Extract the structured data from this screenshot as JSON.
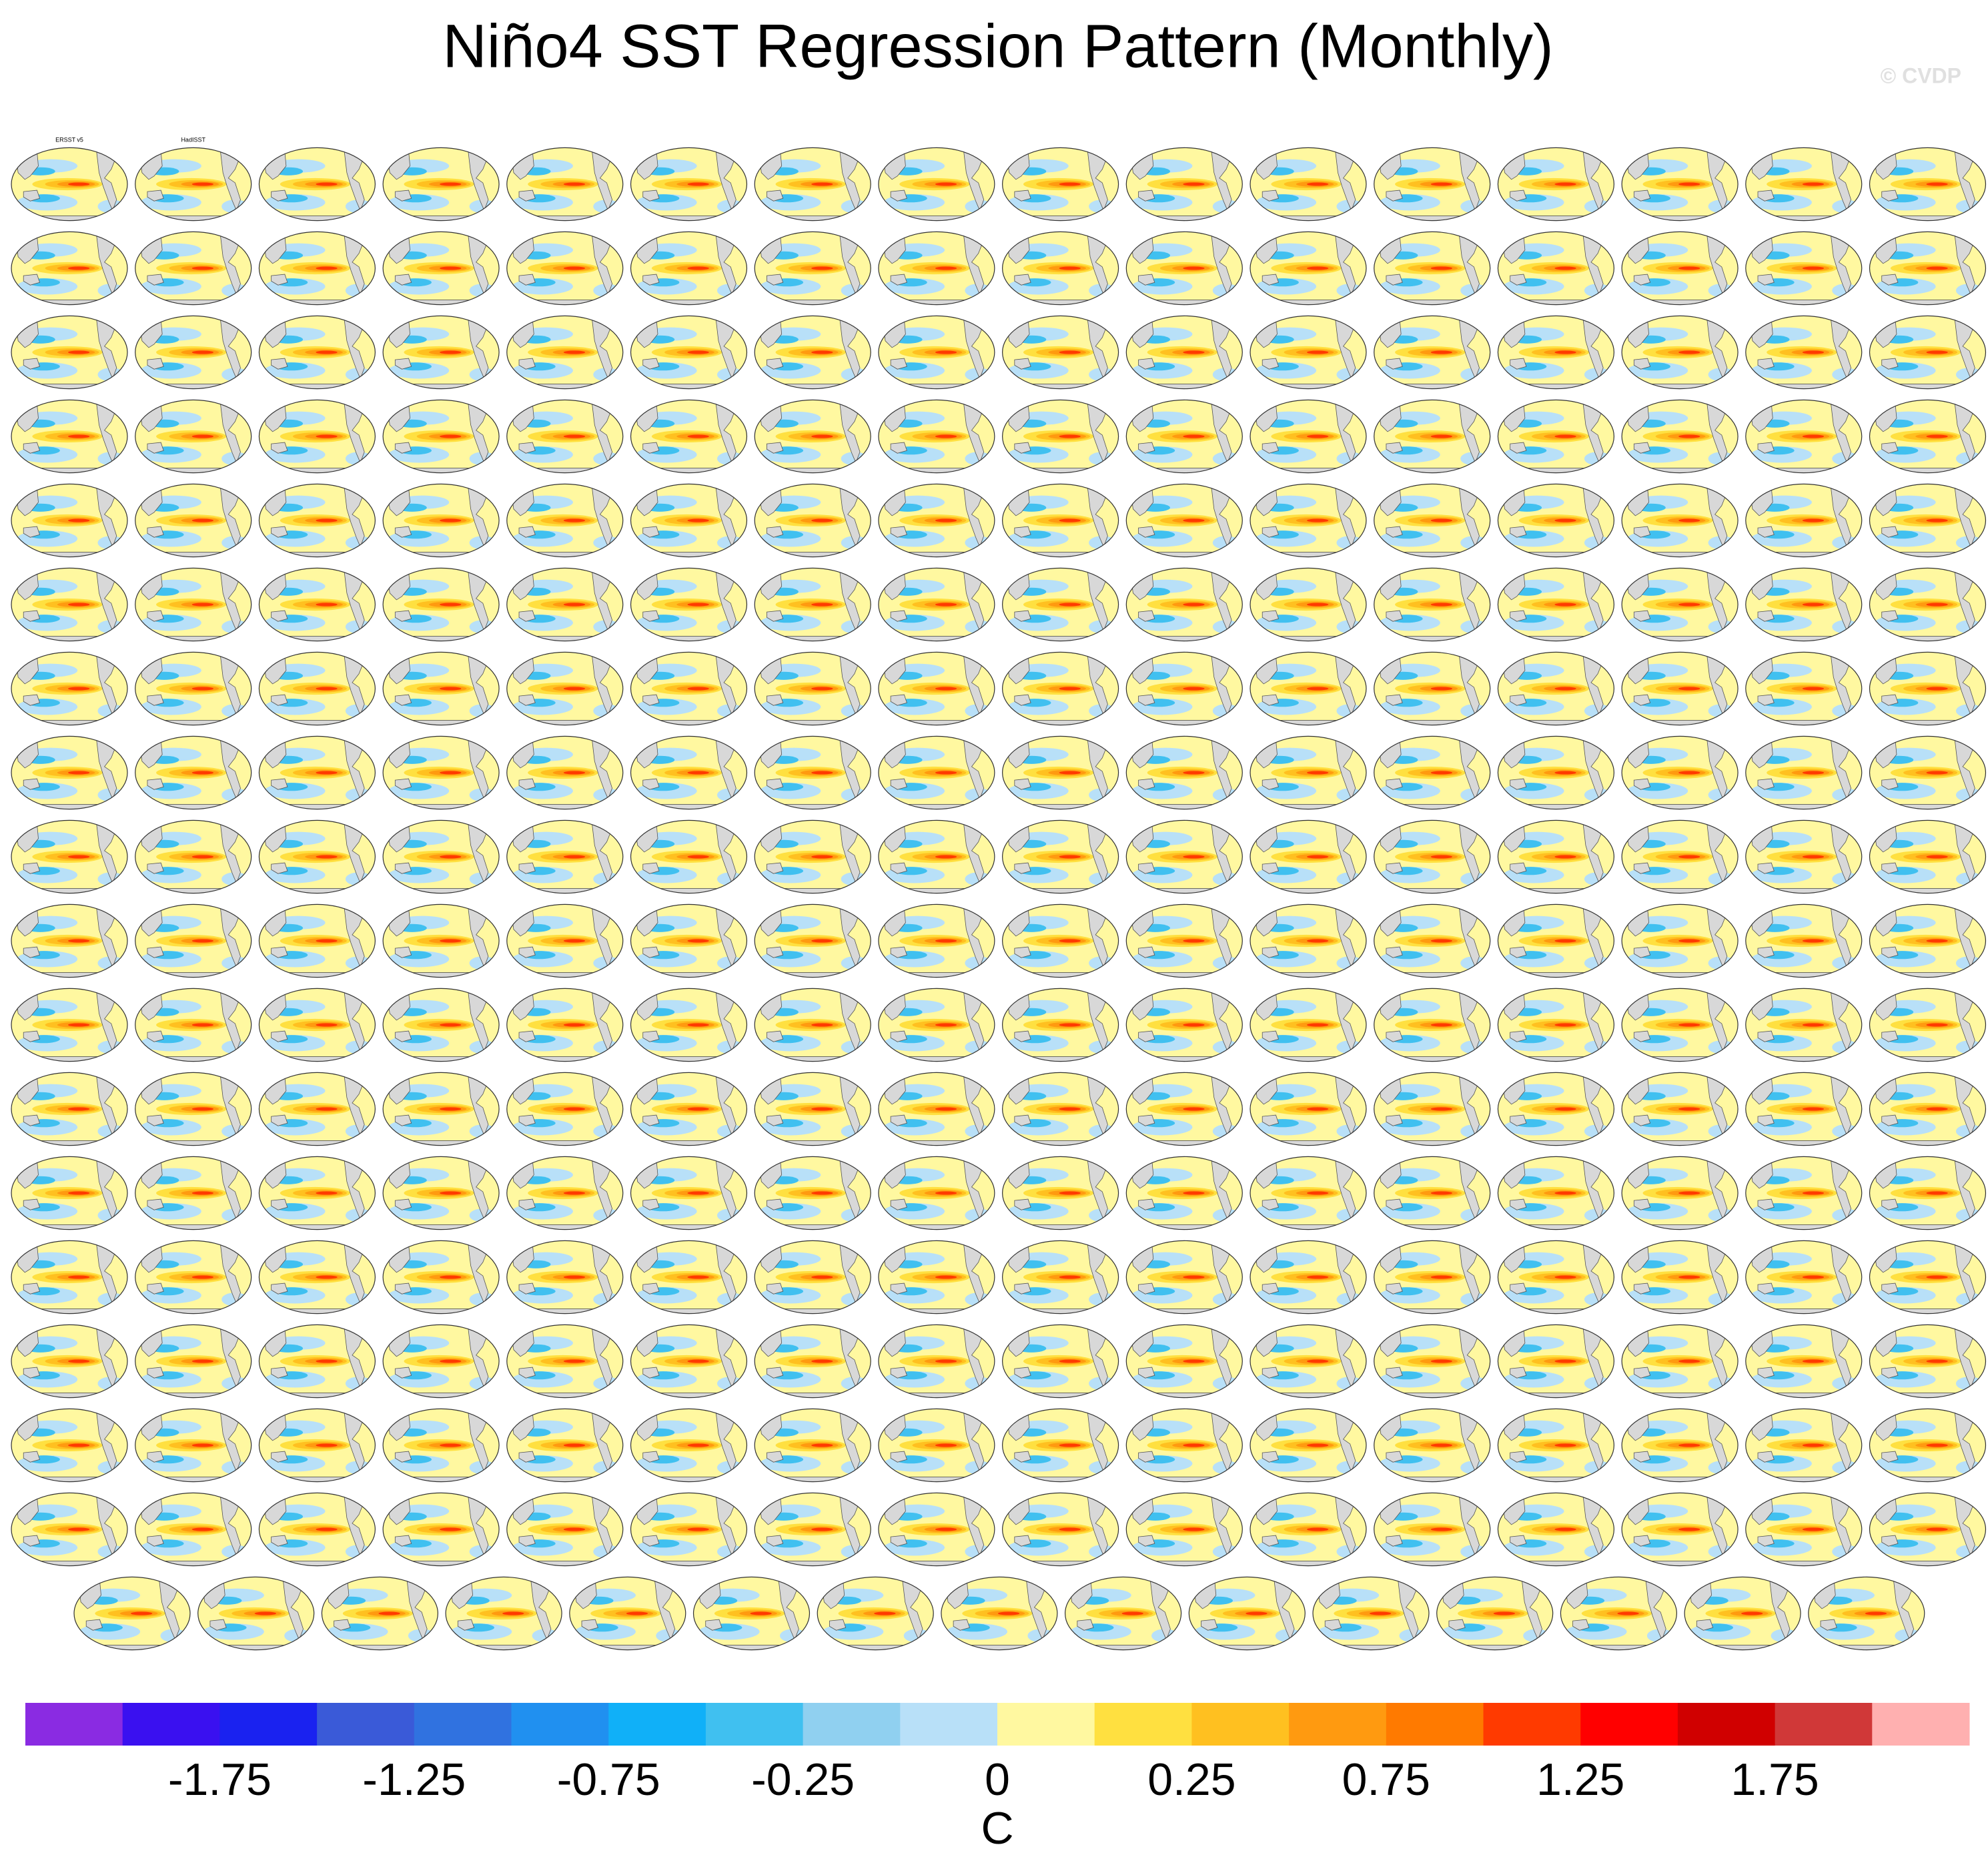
{
  "chart_data": {
    "type": "map-grid",
    "title": "Niño4 SST Regression Pattern (Monthly)",
    "watermark": "© CVDP",
    "panel_titles": [
      "ERSST v5",
      "HadISST"
    ],
    "colorbar": {
      "colors": [
        "#8a2be2",
        "#3a10f0",
        "#1a22f0",
        "#3a5ad8",
        "#3072e0",
        "#2090f0",
        "#10b0f8",
        "#40c0f0",
        "#90d0f0",
        "#b8e0f8",
        "#fff8a0",
        "#ffe040",
        "#ffc020",
        "#ff9a10",
        "#ff7a00",
        "#ff3a00",
        "#ff0000",
        "#d00000",
        "#d03838",
        "#ffb0b0"
      ],
      "ticks": [
        -1.75,
        -1.25,
        -0.75,
        -0.25,
        0,
        0.25,
        0.75,
        1.25,
        1.75
      ],
      "unit": "C"
    }
  }
}
